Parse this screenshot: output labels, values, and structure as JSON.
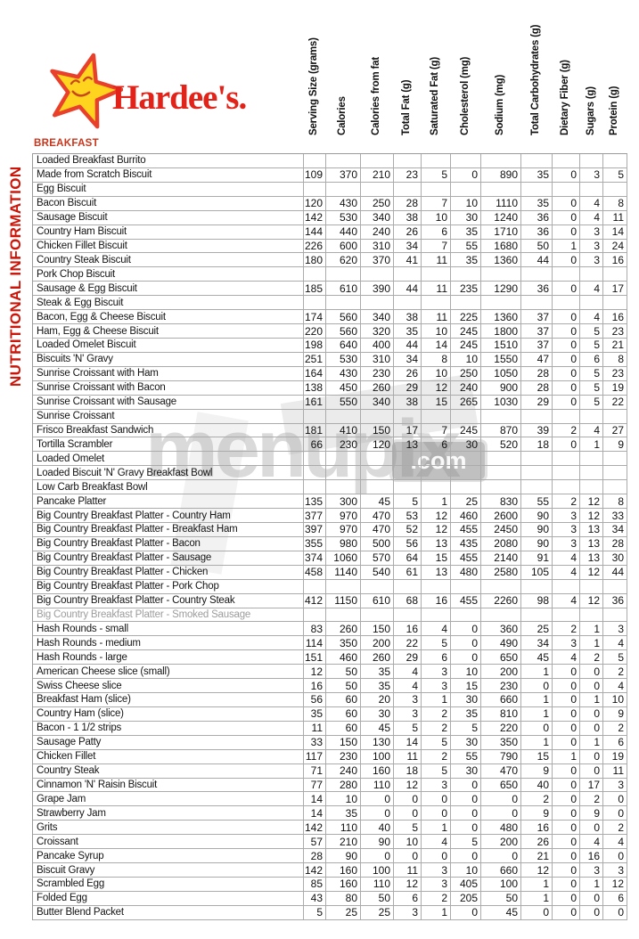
{
  "brand": {
    "name": "Hardee's.",
    "star_color": "#ffd41e",
    "star_outline": "#e8402a",
    "text_color": "#e2231a"
  },
  "page": {
    "vertical_title": "NUTRITIONAL INFORMATION",
    "section_title": "BREAKFAST",
    "accent_red": "#cc1408"
  },
  "watermark": {
    "text": "menupix",
    "suffix": ".com"
  },
  "table": {
    "columns": [
      "Serving Size (grams)",
      "Calories",
      "Calories from fat",
      "Total Fat (g)",
      "Saturated Fat (g)",
      "Cholesterol (mg)",
      "Sodium (mg)",
      "Total Carbohydrates (g)",
      "Dietary Fiber (g)",
      "Sugars (g)",
      "Protein (g)"
    ],
    "rows": [
      {
        "name": "Loaded Breakfast Burrito",
        "values": []
      },
      {
        "name": "Made from Scratch Biscuit",
        "values": [
          109,
          370,
          210,
          23,
          5,
          0,
          890,
          35,
          0,
          3,
          5
        ]
      },
      {
        "name": "Egg Biscuit",
        "values": []
      },
      {
        "name": "Bacon Biscuit",
        "values": [
          120,
          430,
          250,
          28,
          7,
          10,
          1110,
          35,
          0,
          4,
          8
        ]
      },
      {
        "name": "Sausage Biscuit",
        "values": [
          142,
          530,
          340,
          38,
          10,
          30,
          1240,
          36,
          0,
          4,
          11
        ]
      },
      {
        "name": "Country Ham Biscuit",
        "values": [
          144,
          440,
          240,
          26,
          6,
          35,
          1710,
          36,
          0,
          3,
          14
        ]
      },
      {
        "name": "Chicken Fillet Biscuit",
        "values": [
          226,
          600,
          310,
          34,
          7,
          55,
          1680,
          50,
          1,
          3,
          24
        ]
      },
      {
        "name": "Country Steak Biscuit",
        "values": [
          180,
          620,
          370,
          41,
          11,
          35,
          1360,
          44,
          0,
          3,
          16
        ]
      },
      {
        "name": "Pork Chop Biscuit",
        "values": []
      },
      {
        "name": "Sausage & Egg Biscuit",
        "values": [
          185,
          610,
          390,
          44,
          11,
          235,
          1290,
          36,
          0,
          4,
          17
        ]
      },
      {
        "name": "Steak & Egg Biscuit",
        "values": []
      },
      {
        "name": "Bacon, Egg & Cheese Biscuit",
        "values": [
          174,
          560,
          340,
          38,
          11,
          225,
          1360,
          37,
          0,
          4,
          16
        ]
      },
      {
        "name": "Ham, Egg & Cheese Biscuit",
        "values": [
          220,
          560,
          320,
          35,
          10,
          245,
          1800,
          37,
          0,
          5,
          23
        ]
      },
      {
        "name": "Loaded Omelet Biscuit",
        "values": [
          198,
          640,
          400,
          44,
          14,
          245,
          1510,
          37,
          0,
          5,
          21
        ]
      },
      {
        "name": "Biscuits 'N' Gravy",
        "values": [
          251,
          530,
          310,
          34,
          8,
          10,
          1550,
          47,
          0,
          6,
          8
        ]
      },
      {
        "name": "Sunrise Croissant with Ham",
        "values": [
          164,
          430,
          230,
          26,
          10,
          250,
          1050,
          28,
          0,
          5,
          23
        ]
      },
      {
        "name": "Sunrise Croissant with Bacon",
        "values": [
          138,
          450,
          260,
          29,
          12,
          240,
          900,
          28,
          0,
          5,
          19
        ]
      },
      {
        "name": "Sunrise Croissant with Sausage",
        "values": [
          161,
          550,
          340,
          38,
          15,
          265,
          1030,
          29,
          0,
          5,
          22
        ]
      },
      {
        "name": "Sunrise Croissant",
        "values": []
      },
      {
        "name": "Frisco Breakfast Sandwich",
        "values": [
          181,
          410,
          150,
          17,
          7,
          245,
          870,
          39,
          2,
          4,
          27
        ]
      },
      {
        "name": "Tortilla Scrambler",
        "values": [
          66,
          230,
          120,
          13,
          6,
          30,
          520,
          18,
          0,
          1,
          9
        ]
      },
      {
        "name": "Loaded Omelet",
        "values": []
      },
      {
        "name": "Loaded Biscuit 'N' Gravy Breakfast Bowl",
        "values": []
      },
      {
        "name": "Low Carb Breakfast Bowl",
        "values": []
      },
      {
        "name": "Pancake Platter",
        "values": [
          135,
          300,
          45,
          5,
          1,
          25,
          830,
          55,
          2,
          12,
          8
        ]
      },
      {
        "name": "Big Country Breakfast Platter - Country Ham",
        "values": [
          377,
          970,
          470,
          53,
          12,
          460,
          2600,
          90,
          3,
          12,
          33
        ]
      },
      {
        "name": "Big Country Breakfast Platter - Breakfast Ham",
        "values": [
          397,
          970,
          470,
          52,
          12,
          455,
          2450,
          90,
          3,
          13,
          34
        ]
      },
      {
        "name": "Big Country Breakfast Platter - Bacon",
        "values": [
          355,
          980,
          500,
          56,
          13,
          435,
          2080,
          90,
          3,
          13,
          28
        ]
      },
      {
        "name": "Big Country Breakfast Platter - Sausage",
        "values": [
          374,
          1060,
          570,
          64,
          15,
          455,
          2140,
          91,
          4,
          13,
          30
        ]
      },
      {
        "name": "Big Country Breakfast Platter - Chicken",
        "values": [
          458,
          1140,
          540,
          61,
          13,
          480,
          2580,
          105,
          4,
          12,
          44
        ]
      },
      {
        "name": "Big Country Breakfast Platter - Pork Chop",
        "values": []
      },
      {
        "name": "Big Country Breakfast Platter - Country Steak",
        "values": [
          412,
          1150,
          610,
          68,
          16,
          455,
          2260,
          98,
          4,
          12,
          36
        ]
      },
      {
        "name": "Big Country Breakfast Platter - Smoked Sausage",
        "values": [],
        "muted": true
      },
      {
        "name": "Hash Rounds - small",
        "values": [
          83,
          260,
          150,
          16,
          4,
          0,
          360,
          25,
          2,
          1,
          3
        ]
      },
      {
        "name": "Hash Rounds - medium",
        "values": [
          114,
          350,
          200,
          22,
          5,
          0,
          490,
          34,
          3,
          1,
          4
        ]
      },
      {
        "name": "Hash Rounds - large",
        "values": [
          151,
          460,
          260,
          29,
          6,
          0,
          650,
          45,
          4,
          2,
          5
        ]
      },
      {
        "name": "American Cheese slice (small)",
        "values": [
          12,
          50,
          35,
          4,
          3,
          10,
          200,
          1,
          0,
          0,
          2
        ]
      },
      {
        "name": "Swiss Cheese slice",
        "values": [
          16,
          50,
          35,
          4,
          3,
          15,
          230,
          0,
          0,
          0,
          4
        ]
      },
      {
        "name": "Breakfast Ham (slice)",
        "values": [
          56,
          60,
          20,
          3,
          1,
          30,
          660,
          1,
          0,
          1,
          10
        ]
      },
      {
        "name": "Country Ham (slice)",
        "values": [
          35,
          60,
          30,
          3,
          2,
          35,
          810,
          1,
          0,
          0,
          9
        ]
      },
      {
        "name": "Bacon - 1 1/2 strips",
        "values": [
          11,
          60,
          45,
          5,
          2,
          5,
          220,
          0,
          0,
          0,
          2
        ]
      },
      {
        "name": "Sausage Patty",
        "values": [
          33,
          150,
          130,
          14,
          5,
          30,
          350,
          1,
          0,
          1,
          6
        ]
      },
      {
        "name": "Chicken Fillet",
        "values": [
          117,
          230,
          100,
          11,
          2,
          55,
          790,
          15,
          1,
          0,
          19
        ]
      },
      {
        "name": "Country Steak",
        "values": [
          71,
          240,
          160,
          18,
          5,
          30,
          470,
          9,
          0,
          0,
          11
        ]
      },
      {
        "name": "Cinnamon 'N' Raisin Biscuit",
        "values": [
          77,
          280,
          110,
          12,
          3,
          0,
          650,
          40,
          0,
          17,
          3
        ]
      },
      {
        "name": "Grape Jam",
        "values": [
          14,
          10,
          0,
          0,
          0,
          0,
          0,
          2,
          0,
          2,
          0
        ]
      },
      {
        "name": "Strawberry Jam",
        "values": [
          14,
          35,
          0,
          0,
          0,
          0,
          0,
          9,
          0,
          9,
          0
        ]
      },
      {
        "name": "Grits",
        "values": [
          142,
          110,
          40,
          5,
          1,
          0,
          480,
          16,
          0,
          0,
          2
        ]
      },
      {
        "name": "Croissant",
        "values": [
          57,
          210,
          90,
          10,
          4,
          5,
          200,
          26,
          0,
          4,
          4
        ]
      },
      {
        "name": "Pancake Syrup",
        "values": [
          28,
          90,
          0,
          0,
          0,
          0,
          0,
          21,
          0,
          16,
          0
        ]
      },
      {
        "name": "Biscuit Gravy",
        "values": [
          142,
          160,
          100,
          11,
          3,
          10,
          660,
          12,
          0,
          3,
          3
        ]
      },
      {
        "name": "Scrambled Egg",
        "values": [
          85,
          160,
          110,
          12,
          3,
          405,
          100,
          1,
          0,
          1,
          12
        ]
      },
      {
        "name": "Folded Egg",
        "values": [
          43,
          80,
          50,
          6,
          2,
          205,
          50,
          1,
          0,
          0,
          6
        ]
      },
      {
        "name": "Butter Blend Packet",
        "values": [
          5,
          25,
          25,
          3,
          1,
          0,
          45,
          0,
          0,
          0,
          0
        ]
      }
    ]
  }
}
